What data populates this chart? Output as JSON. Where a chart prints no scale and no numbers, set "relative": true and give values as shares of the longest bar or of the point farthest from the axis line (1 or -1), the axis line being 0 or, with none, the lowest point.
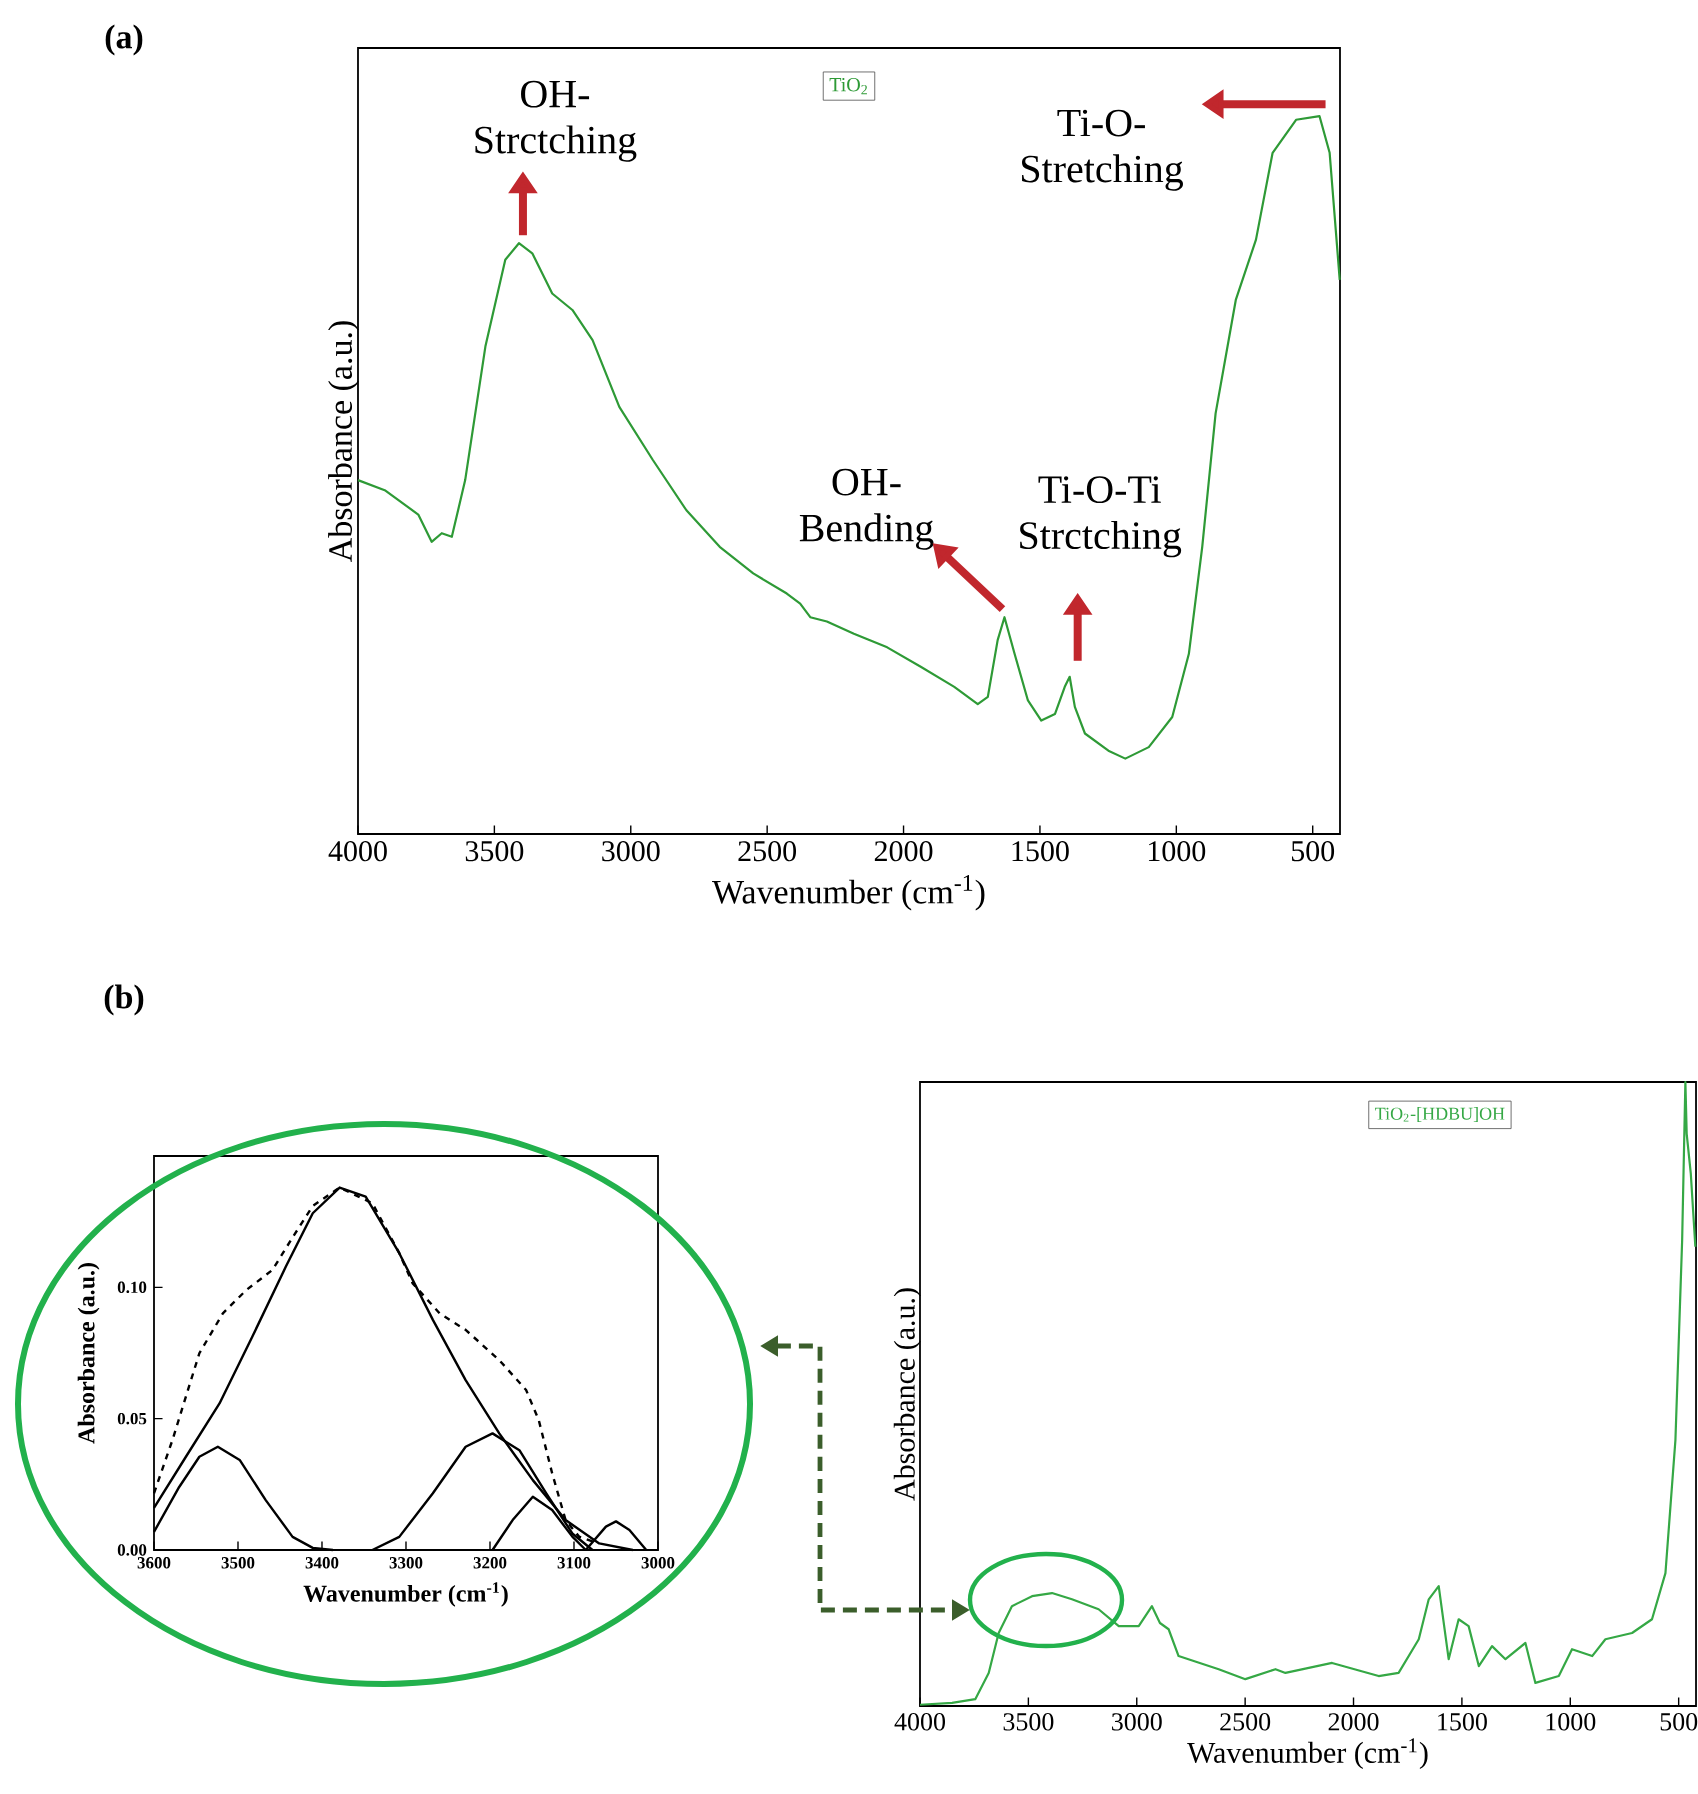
{
  "chart_data": [
    {
      "type": "line",
      "title": "(a)",
      "xlabel": "Wavenumber (cm$^{-1}$)",
      "ylabel": "Absorbance (a.u.)",
      "relative": true,
      "tick_labels": "x",
      "legend": "top",
      "xlim": [
        4000,
        400
      ],
      "xticks": [
        4000,
        3500,
        3000,
        2500,
        2000,
        1500,
        1000,
        500
      ],
      "series": [
        {
          "name": "TiO$_{2}$",
          "color": "#2e9a36",
          "x": [
            4000,
            3902,
            3779,
            3730,
            3693,
            3656,
            3607,
            3533,
            3460,
            3410,
            3361,
            3288,
            3214,
            3140,
            3042,
            2919,
            2796,
            2674,
            2551,
            2428,
            2379,
            2342,
            2281,
            2182,
            2060,
            1937,
            1814,
            1728,
            1691,
            1655,
            1630,
            1593,
            1544,
            1495,
            1445,
            1409,
            1391,
            1372,
            1335,
            1249,
            1187,
            1101,
            1015,
            954,
            905,
            856,
            782,
            708,
            647,
            561,
            475,
            438,
            401
          ],
          "values": [
            0.493,
            0.479,
            0.445,
            0.407,
            0.419,
            0.414,
            0.493,
            0.679,
            0.8,
            0.823,
            0.809,
            0.753,
            0.73,
            0.688,
            0.595,
            0.521,
            0.451,
            0.4,
            0.363,
            0.335,
            0.321,
            0.302,
            0.296,
            0.279,
            0.26,
            0.233,
            0.205,
            0.181,
            0.191,
            0.27,
            0.302,
            0.251,
            0.186,
            0.158,
            0.167,
            0.205,
            0.219,
            0.177,
            0.14,
            0.116,
            0.105,
            0.121,
            0.163,
            0.251,
            0.4,
            0.586,
            0.744,
            0.828,
            0.949,
            0.995,
            1.0,
            0.949,
            0.772
          ]
        }
      ],
      "annotations": [
        {
          "text": "OH- Strctching",
          "x": 3410,
          "y": 0.823
        },
        {
          "text": "OH- Bending",
          "x": 1630,
          "y": 0.302
        },
        {
          "text": "Ti-O-Ti Strctching",
          "x": 1391,
          "y": 0.219
        },
        {
          "text": "Ti-O- Stretching",
          "x": 475,
          "y": 1.0
        }
      ]
    },
    {
      "type": "line",
      "title": "(b)",
      "xlabel": "Wavenumber (cm$^{-1}$)",
      "ylabel": "Absorbance (a.u.)",
      "xlim": [
        3600,
        3000
      ],
      "xticks": [
        3600,
        3500,
        3400,
        3300,
        3200,
        3100,
        3000
      ],
      "ylim": [
        0,
        0.15
      ],
      "yticks": [
        {
          "value": 0,
          "label": "0.00"
        },
        {
          "value": 0.05,
          "label": "0.05"
        },
        {
          "value": 0.1,
          "label": "0.10"
        }
      ],
      "series": [
        {
          "color": "#000000",
          "line_style": "dashed",
          "x": [
            3600,
            3578,
            3546,
            3518,
            3490,
            3459,
            3435,
            3411,
            3379,
            3340,
            3308,
            3292,
            3260,
            3229,
            3189,
            3157,
            3142,
            3126,
            3110,
            3094,
            3078
          ],
          "values": [
            0.0216,
            0.0419,
            0.0749,
            0.0901,
            0.099,
            0.1066,
            0.119,
            0.131,
            0.138,
            0.132,
            0.113,
            0.1015,
            0.0901,
            0.0838,
            0.0723,
            0.0609,
            0.0495,
            0.0292,
            0.0114,
            0.0051,
            0.0033
          ]
        },
        {
          "color": "#000000",
          "line_style": "solid",
          "x": [
            3600,
            3562,
            3522,
            3483,
            3443,
            3411,
            3379,
            3348,
            3308,
            3268,
            3229,
            3189,
            3149,
            3110,
            3070,
            3030
          ],
          "values": [
            0.016,
            0.0355,
            0.0558,
            0.0812,
            0.1079,
            0.1282,
            0.138,
            0.1345,
            0.113,
            0.0876,
            0.0647,
            0.0444,
            0.0266,
            0.0114,
            0.0025,
            0
          ]
        },
        {
          "color": "#000000",
          "line_style": "solid",
          "x": [
            3600,
            3570,
            3546,
            3524,
            3498,
            3467,
            3435,
            3411,
            3387
          ],
          "values": [
            0.0069,
            0.024,
            0.0355,
            0.0393,
            0.0343,
            0.019,
            0.005,
            0.0008,
            0
          ]
        },
        {
          "color": "#000000",
          "line_style": "solid",
          "x": [
            3340,
            3308,
            3268,
            3229,
            3197,
            3165,
            3133,
            3102,
            3078
          ],
          "values": [
            0,
            0.005,
            0.0216,
            0.0393,
            0.0444,
            0.038,
            0.0216,
            0.0063,
            0
          ]
        },
        {
          "color": "#000000",
          "line_style": "solid",
          "x": [
            3197,
            3173,
            3149,
            3126,
            3102,
            3086
          ],
          "values": [
            0,
            0.0114,
            0.0203,
            0.0152,
            0.0051,
            0
          ]
        },
        {
          "color": "#000000",
          "line_style": "solid",
          "x": [
            3086,
            3062,
            3050,
            3034,
            3014
          ],
          "values": [
            0,
            0.0089,
            0.0109,
            0.0076,
            0
          ]
        }
      ]
    },
    {
      "type": "line",
      "xlabel": "Wavenumber (cm$^{-1}$)",
      "ylabel": "Absorbance (a.u.)",
      "relative": true,
      "tick_labels": "x",
      "legend": "top",
      "xlim": [
        4000,
        420
      ],
      "xticks": [
        4000,
        3500,
        3000,
        2500,
        2000,
        1500,
        1000,
        500
      ],
      "series": [
        {
          "name": "TiO$_{2}$-[HDBU]OH",
          "color": "#35a845",
          "x": [
            4000,
            3852,
            3745,
            3683,
            3637,
            3576,
            3483,
            3391,
            3299,
            3176,
            3083,
            2991,
            2930,
            2893,
            2853,
            2807,
            2622,
            2499,
            2360,
            2314,
            2099,
            1884,
            1792,
            1699,
            1653,
            1607,
            1561,
            1515,
            1469,
            1422,
            1361,
            1299,
            1207,
            1161,
            1053,
            992,
            899,
            838,
            715,
            623,
            561,
            515,
            484,
            469,
            463,
            444,
            423
          ],
          "values": [
            0.002,
            0.005,
            0.011,
            0.053,
            0.117,
            0.16,
            0.176,
            0.181,
            0.171,
            0.155,
            0.128,
            0.128,
            0.16,
            0.133,
            0.123,
            0.08,
            0.059,
            0.043,
            0.059,
            0.053,
            0.069,
            0.048,
            0.053,
            0.107,
            0.171,
            0.192,
            0.075,
            0.139,
            0.128,
            0.064,
            0.096,
            0.075,
            0.101,
            0.037,
            0.048,
            0.091,
            0.08,
            0.107,
            0.117,
            0.139,
            0.213,
            0.426,
            0.746,
            1.0,
            0.917,
            0.853,
            0.736
          ]
        }
      ]
    }
  ]
}
